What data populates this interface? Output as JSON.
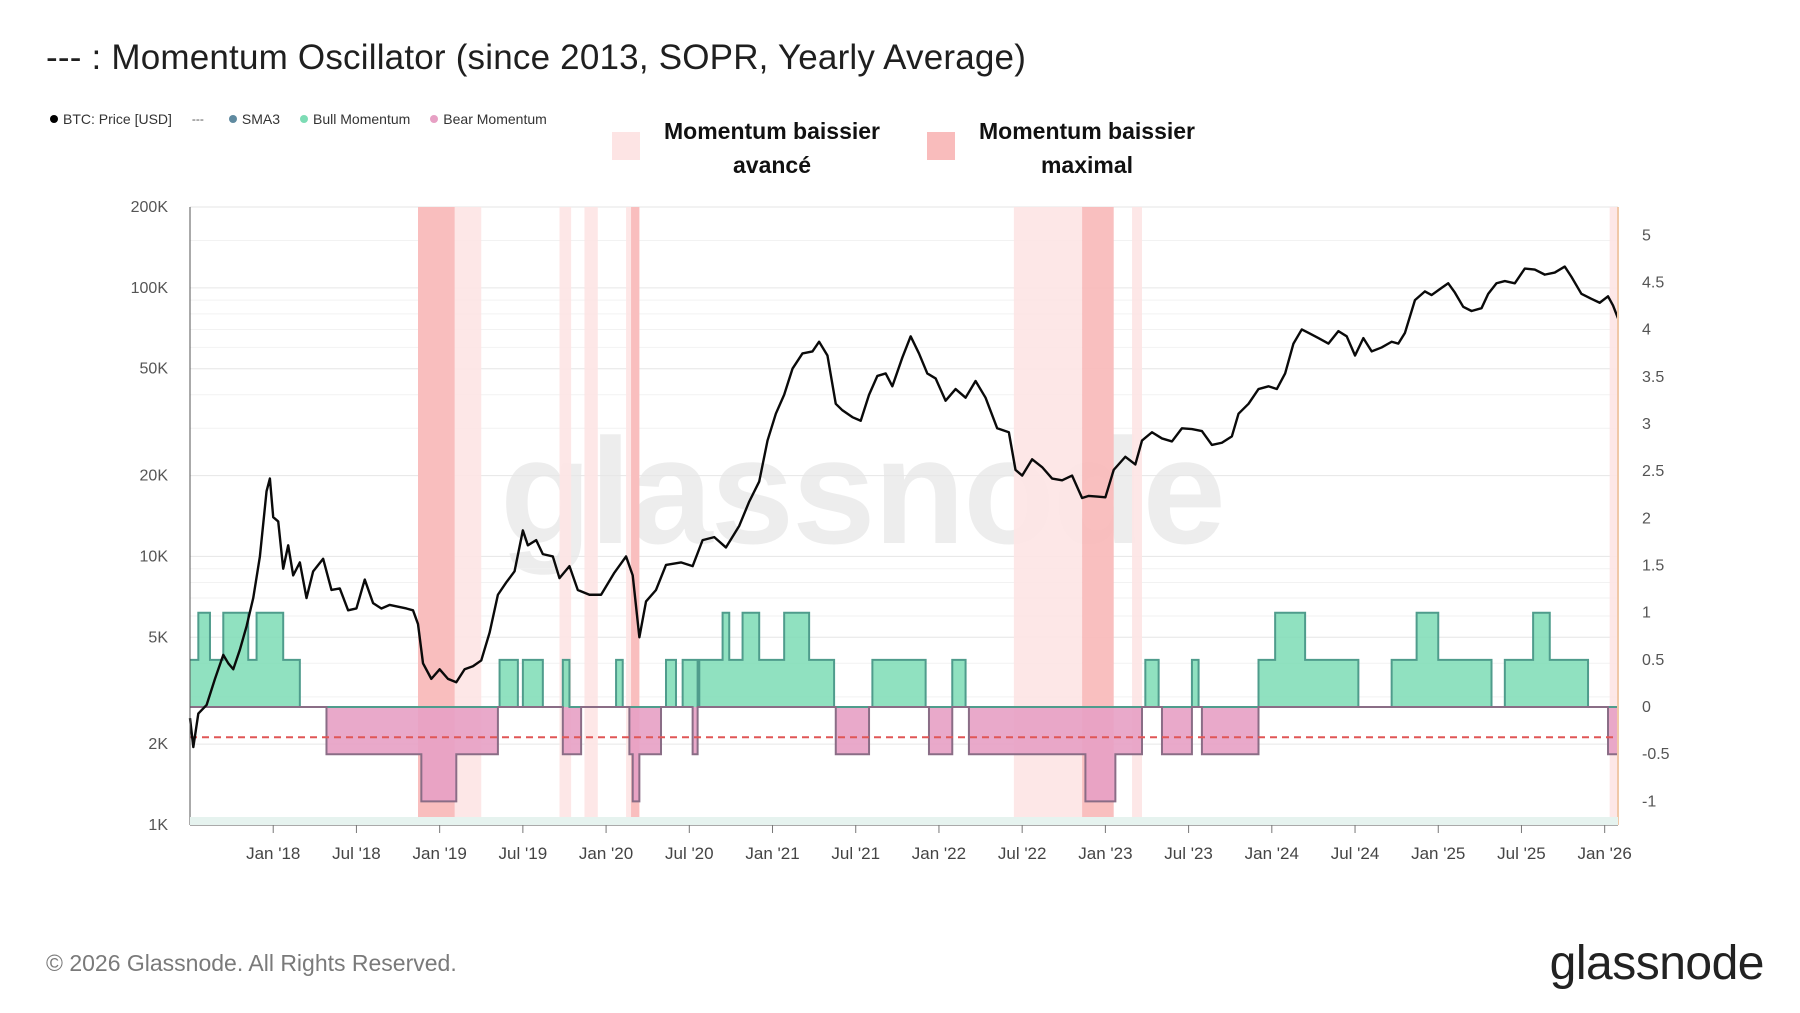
{
  "title": "--- : Momentum Oscillator (since 2013, SOPR, Yearly Average)",
  "legend": [
    {
      "label": "BTC: Price [USD]",
      "color": "#000000",
      "marker": "dot"
    },
    {
      "label": "",
      "color": "#555555",
      "marker": "dash",
      "glyph": "---"
    },
    {
      "label": "SMA3",
      "color": "#5f8aa0",
      "marker": "dot"
    },
    {
      "label": "Bull Momentum",
      "color": "#7ddcb5",
      "marker": "dot"
    },
    {
      "label": "Bear Momentum",
      "color": "#e7a0c4",
      "marker": "dot"
    }
  ],
  "zone_legend": [
    {
      "label_line1": "Momentum baissier",
      "label_line2": "avancé",
      "color": "#fde4e4"
    },
    {
      "label_line1": "Momentum baissier",
      "label_line2": "maximal",
      "color": "#f9bcbc"
    }
  ],
  "footer": "© 2026 Glassnode. All Rights Reserved.",
  "brand": "glassnode",
  "watermark": "glassnode",
  "chart_data": {
    "type": "line",
    "x_start": 2017.5,
    "x_end": 2026.08,
    "x_ticks": [
      {
        "label": "Jan '18",
        "x": 2018.0
      },
      {
        "label": "Jul '18",
        "x": 2018.5
      },
      {
        "label": "Jan '19",
        "x": 2019.0
      },
      {
        "label": "Jul '19",
        "x": 2019.5
      },
      {
        "label": "Jan '20",
        "x": 2020.0
      },
      {
        "label": "Jul '20",
        "x": 2020.5
      },
      {
        "label": "Jan '21",
        "x": 2021.0
      },
      {
        "label": "Jul '21",
        "x": 2021.5
      },
      {
        "label": "Jan '22",
        "x": 2022.0
      },
      {
        "label": "Jul '22",
        "x": 2022.5
      },
      {
        "label": "Jan '23",
        "x": 2023.0
      },
      {
        "label": "Jul '23",
        "x": 2023.5
      },
      {
        "label": "Jan '24",
        "x": 2024.0
      },
      {
        "label": "Jul '24",
        "x": 2024.5
      },
      {
        "label": "Jan '25",
        "x": 2025.0
      },
      {
        "label": "Jul '25",
        "x": 2025.5
      },
      {
        "label": "Jan '26",
        "x": 2026.0
      }
    ],
    "y_left": {
      "scale": "log",
      "range": [
        1000,
        200000
      ],
      "ticks": [
        {
          "label": "200K",
          "v": 200000
        },
        {
          "label": "100K",
          "v": 100000
        },
        {
          "label": "50K",
          "v": 50000
        },
        {
          "label": "20K",
          "v": 20000
        },
        {
          "label": "10K",
          "v": 10000
        },
        {
          "label": "5K",
          "v": 5000
        },
        {
          "label": "2K",
          "v": 2000
        },
        {
          "label": "1K",
          "v": 1000
        }
      ]
    },
    "y_right": {
      "scale": "linear",
      "range": [
        -1.25,
        5.3
      ],
      "ticks": [
        {
          "label": "5",
          "v": 5
        },
        {
          "label": "4.5",
          "v": 4.5
        },
        {
          "label": "4",
          "v": 4
        },
        {
          "label": "3.5",
          "v": 3.5
        },
        {
          "label": "3",
          "v": 3
        },
        {
          "label": "2.5",
          "v": 2.5
        },
        {
          "label": "2",
          "v": 2
        },
        {
          "label": "1.5",
          "v": 1.5
        },
        {
          "label": "1",
          "v": 1
        },
        {
          "label": "0.5",
          "v": 0.5
        },
        {
          "label": "0",
          "v": 0
        },
        {
          "label": "-0.5",
          "v": -0.5
        },
        {
          "label": "-1",
          "v": -1
        }
      ]
    },
    "threshold": -0.32,
    "zones_advanced": [
      [
        2018.87,
        2019.25
      ],
      [
        2019.72,
        2019.79
      ],
      [
        2019.87,
        2019.95
      ],
      [
        2020.12,
        2020.2
      ],
      [
        2022.45,
        2022.86
      ],
      [
        2023.16,
        2023.22
      ],
      [
        2026.03,
        2026.08
      ]
    ],
    "zones_maximal": [
      [
        2018.87,
        2019.09
      ],
      [
        2020.15,
        2020.2
      ],
      [
        2022.86,
        2023.05
      ]
    ],
    "btc_price": [
      [
        2017.5,
        2500
      ],
      [
        2017.52,
        1950
      ],
      [
        2017.55,
        2600
      ],
      [
        2017.6,
        2800
      ],
      [
        2017.65,
        3500
      ],
      [
        2017.7,
        4300
      ],
      [
        2017.73,
        4000
      ],
      [
        2017.76,
        3800
      ],
      [
        2017.8,
        4500
      ],
      [
        2017.84,
        5500
      ],
      [
        2017.88,
        7000
      ],
      [
        2017.92,
        10000
      ],
      [
        2017.96,
        17500
      ],
      [
        2017.98,
        19500
      ],
      [
        2018.0,
        14000
      ],
      [
        2018.03,
        13500
      ],
      [
        2018.06,
        9000
      ],
      [
        2018.09,
        11000
      ],
      [
        2018.12,
        8500
      ],
      [
        2018.16,
        9500
      ],
      [
        2018.2,
        7000
      ],
      [
        2018.24,
        8800
      ],
      [
        2018.3,
        9800
      ],
      [
        2018.35,
        7500
      ],
      [
        2018.4,
        7600
      ],
      [
        2018.45,
        6300
      ],
      [
        2018.5,
        6400
      ],
      [
        2018.55,
        8200
      ],
      [
        2018.6,
        6700
      ],
      [
        2018.65,
        6400
      ],
      [
        2018.7,
        6600
      ],
      [
        2018.75,
        6500
      ],
      [
        2018.8,
        6400
      ],
      [
        2018.84,
        6300
      ],
      [
        2018.87,
        5600
      ],
      [
        2018.9,
        4000
      ],
      [
        2018.95,
        3500
      ],
      [
        2019.0,
        3800
      ],
      [
        2019.05,
        3500
      ],
      [
        2019.1,
        3400
      ],
      [
        2019.15,
        3800
      ],
      [
        2019.2,
        3900
      ],
      [
        2019.25,
        4100
      ],
      [
        2019.3,
        5200
      ],
      [
        2019.35,
        7200
      ],
      [
        2019.4,
        8000
      ],
      [
        2019.45,
        8800
      ],
      [
        2019.5,
        12500
      ],
      [
        2019.53,
        11000
      ],
      [
        2019.58,
        11500
      ],
      [
        2019.62,
        10200
      ],
      [
        2019.68,
        10000
      ],
      [
        2019.72,
        8300
      ],
      [
        2019.78,
        9200
      ],
      [
        2019.83,
        7500
      ],
      [
        2019.9,
        7200
      ],
      [
        2019.97,
        7200
      ],
      [
        2020.05,
        8700
      ],
      [
        2020.12,
        10000
      ],
      [
        2020.16,
        8500
      ],
      [
        2020.2,
        5000
      ],
      [
        2020.24,
        6800
      ],
      [
        2020.3,
        7500
      ],
      [
        2020.36,
        9300
      ],
      [
        2020.45,
        9500
      ],
      [
        2020.52,
        9200
      ],
      [
        2020.58,
        11500
      ],
      [
        2020.65,
        11800
      ],
      [
        2020.72,
        10800
      ],
      [
        2020.8,
        13000
      ],
      [
        2020.86,
        16000
      ],
      [
        2020.92,
        19000
      ],
      [
        2020.97,
        27000
      ],
      [
        2021.02,
        34000
      ],
      [
        2021.07,
        40000
      ],
      [
        2021.12,
        50000
      ],
      [
        2021.18,
        57000
      ],
      [
        2021.24,
        58000
      ],
      [
        2021.28,
        63000
      ],
      [
        2021.33,
        56000
      ],
      [
        2021.38,
        37000
      ],
      [
        2021.42,
        35000
      ],
      [
        2021.48,
        33000
      ],
      [
        2021.53,
        32000
      ],
      [
        2021.58,
        40000
      ],
      [
        2021.63,
        47000
      ],
      [
        2021.68,
        48000
      ],
      [
        2021.72,
        43000
      ],
      [
        2021.78,
        55000
      ],
      [
        2021.83,
        66000
      ],
      [
        2021.88,
        57000
      ],
      [
        2021.93,
        48000
      ],
      [
        2021.98,
        46000
      ],
      [
        2022.04,
        38000
      ],
      [
        2022.1,
        42000
      ],
      [
        2022.16,
        39000
      ],
      [
        2022.22,
        45000
      ],
      [
        2022.28,
        39000
      ],
      [
        2022.35,
        30000
      ],
      [
        2022.42,
        29000
      ],
      [
        2022.46,
        21000
      ],
      [
        2022.5,
        20000
      ],
      [
        2022.56,
        23000
      ],
      [
        2022.62,
        21500
      ],
      [
        2022.68,
        19500
      ],
      [
        2022.74,
        19200
      ],
      [
        2022.8,
        20000
      ],
      [
        2022.86,
        16500
      ],
      [
        2022.9,
        16800
      ],
      [
        2022.95,
        16700
      ],
      [
        2023.0,
        16600
      ],
      [
        2023.05,
        21000
      ],
      [
        2023.12,
        23500
      ],
      [
        2023.18,
        22000
      ],
      [
        2023.22,
        27000
      ],
      [
        2023.28,
        29000
      ],
      [
        2023.34,
        27500
      ],
      [
        2023.4,
        26800
      ],
      [
        2023.46,
        30000
      ],
      [
        2023.52,
        29800
      ],
      [
        2023.58,
        29300
      ],
      [
        2023.64,
        26000
      ],
      [
        2023.7,
        26500
      ],
      [
        2023.76,
        28000
      ],
      [
        2023.8,
        34000
      ],
      [
        2023.86,
        37000
      ],
      [
        2023.92,
        42000
      ],
      [
        2023.98,
        43000
      ],
      [
        2024.03,
        42000
      ],
      [
        2024.08,
        48000
      ],
      [
        2024.13,
        62000
      ],
      [
        2024.18,
        70000
      ],
      [
        2024.22,
        68000
      ],
      [
        2024.28,
        65000
      ],
      [
        2024.34,
        62000
      ],
      [
        2024.4,
        69000
      ],
      [
        2024.45,
        66000
      ],
      [
        2024.5,
        56000
      ],
      [
        2024.55,
        65000
      ],
      [
        2024.6,
        58000
      ],
      [
        2024.66,
        60000
      ],
      [
        2024.72,
        63000
      ],
      [
        2024.76,
        62000
      ],
      [
        2024.8,
        68000
      ],
      [
        2024.86,
        90000
      ],
      [
        2024.92,
        97000
      ],
      [
        2024.96,
        94000
      ],
      [
        2025.02,
        100000
      ],
      [
        2025.06,
        104000
      ],
      [
        2025.1,
        96000
      ],
      [
        2025.15,
        85000
      ],
      [
        2025.2,
        82000
      ],
      [
        2025.26,
        84000
      ],
      [
        2025.3,
        95000
      ],
      [
        2025.35,
        104000
      ],
      [
        2025.4,
        106000
      ],
      [
        2025.46,
        104000
      ],
      [
        2025.52,
        118000
      ],
      [
        2025.58,
        117000
      ],
      [
        2025.64,
        112000
      ],
      [
        2025.7,
        114000
      ],
      [
        2025.76,
        120000
      ],
      [
        2025.8,
        110000
      ],
      [
        2025.86,
        95000
      ],
      [
        2025.92,
        91000
      ],
      [
        2025.97,
        88000
      ],
      [
        2026.02,
        93000
      ],
      [
        2026.05,
        86000
      ],
      [
        2026.08,
        77000
      ]
    ],
    "bull_momentum": [
      [
        2017.5,
        0.5
      ],
      [
        2017.55,
        1
      ],
      [
        2017.62,
        0.5
      ],
      [
        2017.66,
        0.5
      ],
      [
        2017.7,
        1
      ],
      [
        2017.8,
        1
      ],
      [
        2017.85,
        0.5
      ],
      [
        2017.9,
        1
      ],
      [
        2018.05,
        1
      ],
      [
        2018.06,
        0.5
      ],
      [
        2018.14,
        0.5
      ],
      [
        2018.16,
        0
      ],
      [
        2018.3,
        0
      ],
      [
        2018.32,
        0
      ],
      [
        2019.35,
        0
      ],
      [
        2019.36,
        0.5
      ],
      [
        2019.45,
        0.5
      ],
      [
        2019.47,
        0
      ],
      [
        2019.5,
        0.5
      ],
      [
        2019.6,
        0.5
      ],
      [
        2019.62,
        0
      ],
      [
        2019.72,
        0
      ],
      [
        2019.74,
        0.5
      ],
      [
        2019.78,
        0
      ],
      [
        2020.05,
        0
      ],
      [
        2020.06,
        0.5
      ],
      [
        2020.1,
        0
      ],
      [
        2020.35,
        0
      ],
      [
        2020.36,
        0.5
      ],
      [
        2020.42,
        0
      ],
      [
        2020.46,
        0.5
      ],
      [
        2020.55,
        0
      ],
      [
        2020.56,
        0.5
      ],
      [
        2020.68,
        0.5
      ],
      [
        2020.7,
        1
      ],
      [
        2020.74,
        0.5
      ],
      [
        2020.8,
        0.5
      ],
      [
        2020.82,
        1
      ],
      [
        2020.9,
        1
      ],
      [
        2020.92,
        0.5
      ],
      [
        2021.05,
        0.5
      ],
      [
        2021.07,
        1
      ],
      [
        2021.2,
        1
      ],
      [
        2021.22,
        0.5
      ],
      [
        2021.35,
        0.5
      ],
      [
        2021.37,
        0
      ],
      [
        2021.58,
        0
      ],
      [
        2021.6,
        0.5
      ],
      [
        2021.9,
        0.5
      ],
      [
        2021.92,
        0
      ],
      [
        2022.06,
        0
      ],
      [
        2022.08,
        0.5
      ],
      [
        2022.14,
        0.5
      ],
      [
        2022.16,
        0
      ],
      [
        2023.22,
        0
      ],
      [
        2023.24,
        0.5
      ],
      [
        2023.3,
        0.5
      ],
      [
        2023.32,
        0
      ],
      [
        2023.5,
        0
      ],
      [
        2023.52,
        0.5
      ],
      [
        2023.56,
        0
      ],
      [
        2023.9,
        0
      ],
      [
        2023.92,
        0.5
      ],
      [
        2024.0,
        0.5
      ],
      [
        2024.02,
        1
      ],
      [
        2024.18,
        1
      ],
      [
        2024.2,
        0.5
      ],
      [
        2024.5,
        0.5
      ],
      [
        2024.52,
        0
      ],
      [
        2024.7,
        0
      ],
      [
        2024.72,
        0.5
      ],
      [
        2024.85,
        0.5
      ],
      [
        2024.87,
        1
      ],
      [
        2024.98,
        1
      ],
      [
        2025.0,
        0.5
      ],
      [
        2025.3,
        0.5
      ],
      [
        2025.32,
        0
      ],
      [
        2025.4,
        0.5
      ],
      [
        2025.55,
        0.5
      ],
      [
        2025.57,
        1
      ],
      [
        2025.65,
        1
      ],
      [
        2025.67,
        0.5
      ],
      [
        2025.85,
        0.5
      ],
      [
        2025.9,
        0
      ],
      [
        2026.08,
        0
      ]
    ],
    "bear_momentum": [
      [
        2017.5,
        0
      ],
      [
        2018.3,
        0
      ],
      [
        2018.32,
        -0.5
      ],
      [
        2018.4,
        -0.5
      ],
      [
        2018.42,
        -0.5
      ],
      [
        2018.6,
        -0.5
      ],
      [
        2018.63,
        -0.5
      ],
      [
        2018.87,
        -0.5
      ],
      [
        2018.89,
        -1
      ],
      [
        2019.08,
        -1
      ],
      [
        2019.1,
        -0.5
      ],
      [
        2019.33,
        -0.5
      ],
      [
        2019.35,
        0
      ],
      [
        2019.72,
        0
      ],
      [
        2019.74,
        -0.5
      ],
      [
        2019.82,
        -0.5
      ],
      [
        2019.85,
        0
      ],
      [
        2020.12,
        0
      ],
      [
        2020.14,
        -0.5
      ],
      [
        2020.16,
        -1
      ],
      [
        2020.19,
        -1
      ],
      [
        2020.2,
        -0.5
      ],
      [
        2020.3,
        -0.5
      ],
      [
        2020.33,
        0
      ],
      [
        2020.5,
        0
      ],
      [
        2020.52,
        -0.5
      ],
      [
        2020.55,
        0
      ],
      [
        2021.37,
        0
      ],
      [
        2021.38,
        -0.5
      ],
      [
        2021.55,
        -0.5
      ],
      [
        2021.58,
        0
      ],
      [
        2021.92,
        0
      ],
      [
        2021.94,
        -0.5
      ],
      [
        2022.06,
        -0.5
      ],
      [
        2022.08,
        0
      ],
      [
        2022.16,
        0
      ],
      [
        2022.18,
        -0.5
      ],
      [
        2022.45,
        -0.5
      ],
      [
        2022.47,
        -0.5
      ],
      [
        2022.86,
        -0.5
      ],
      [
        2022.88,
        -1
      ],
      [
        2023.04,
        -1
      ],
      [
        2023.06,
        -0.5
      ],
      [
        2023.2,
        -0.5
      ],
      [
        2023.22,
        0
      ],
      [
        2023.32,
        0
      ],
      [
        2023.34,
        -0.5
      ],
      [
        2023.5,
        -0.5
      ],
      [
        2023.52,
        0
      ],
      [
        2023.56,
        0
      ],
      [
        2023.58,
        -0.5
      ],
      [
        2023.9,
        -0.5
      ],
      [
        2023.92,
        0
      ],
      [
        2026.0,
        0
      ],
      [
        2026.02,
        -0.5
      ],
      [
        2026.08,
        -0.5
      ]
    ]
  }
}
